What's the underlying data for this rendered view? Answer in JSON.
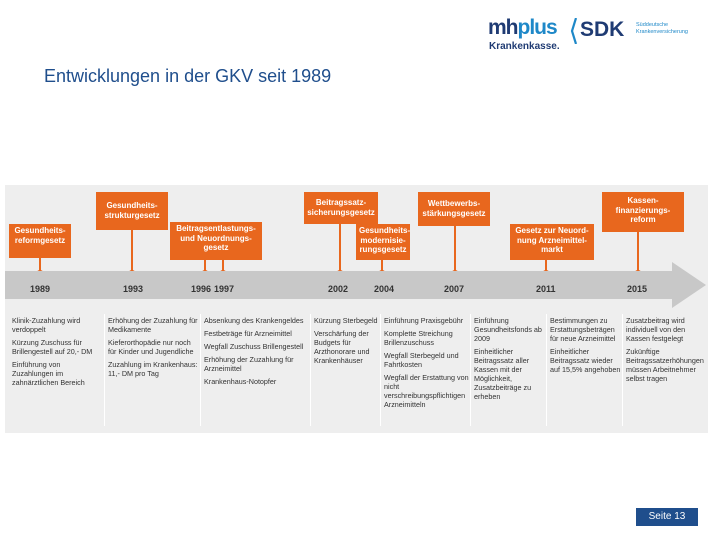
{
  "header": {
    "title": "Entwicklungen in der GKV seit 1989",
    "logo_mhplus_part1": "mh",
    "logo_mhplus_part2": "plus",
    "logo_mhplus_sub": "Krankenkasse.",
    "logo_sdk": "SDK",
    "logo_sdk_sub": "Süddeutsche Krankenversicherung"
  },
  "laws": [
    {
      "lines": [
        "Gesundheits-",
        "reformgesetz"
      ]
    },
    {
      "lines": [
        "Gesundheits-",
        "strukturgesetz"
      ]
    },
    {
      "lines": [
        "Beitragsentlastungs-",
        "und Neuordnungs-",
        "gesetz"
      ]
    },
    {
      "lines": [
        "Beitragssatz-",
        "sicherungsgesetz"
      ]
    },
    {
      "lines": [
        "Gesundheits-",
        "modernisie-",
        "rungsgesetz"
      ]
    },
    {
      "lines": [
        "Wettbewerbs-",
        "stärkungsgesetz"
      ]
    },
    {
      "lines": [
        "Gesetz zur Neuord-",
        "nung Arzneimittel-",
        "markt"
      ]
    },
    {
      "lines": [
        "Kassen-",
        "finanzierungs-",
        "reform"
      ]
    }
  ],
  "years": [
    "1989",
    "1993",
    "1996",
    "1997",
    "2002",
    "2004",
    "2007",
    "2011",
    "2015"
  ],
  "events": [
    [
      "Klinik-Zuzahlung wird verdoppelt",
      "Kürzung Zuschuss für Brillengestell auf 20,- DM",
      "Einführung von Zuzahlungen im zahnärztlichen Bereich"
    ],
    [
      "Erhöhung der Zuzahlung für Medikamente",
      "Kieferorthopädie nur noch für Kinder und Jugendliche",
      "Zuzahlung im Krankenhaus: 11,- DM pro Tag"
    ],
    [
      "Absenkung des Krankengeldes",
      "Festbeträge für Arzneimittel",
      "Wegfall Zuschuss Brillengestell",
      "Erhöhung der Zuzahlung für Arzneimittel",
      "Krankenhaus-Notopfer"
    ],
    [
      "Kürzung Sterbegeld",
      "Verschärfung der Budgets für Arzthonorare und Krankenhäuser"
    ],
    [
      "Einführung Praxisgebühr",
      "Komplette Streichung Brillenzuschuss",
      "Wegfall Sterbegeld und Fahrtkosten",
      "Wegfall der Erstattung von nicht verschreibungspflichtigen Arzneimitteln"
    ],
    [
      "Einführung Gesundheitsfonds ab 2009",
      "Einheitlicher Beitragssatz aller Kassen mit der Möglichkeit, Zusatzbeiträge zu erheben"
    ],
    [
      "Bestimmungen zu Erstattungsbeträgen für neue Arzneimittel",
      "Einheitlicher Beitragssatz wieder auf 15,5% angehoben"
    ],
    [
      "Zusatzbeitrag wird individuell von den Kassen festgelegt",
      "Zukünftige Beitragssatzerhöhungen müssen Arbeitnehmer selbst tragen"
    ]
  ],
  "footer": {
    "page_label": "Seite 13"
  },
  "colors": {
    "accent": "#e8671e",
    "title": "#1f4e8c",
    "timeline": "#c8c8c8"
  }
}
